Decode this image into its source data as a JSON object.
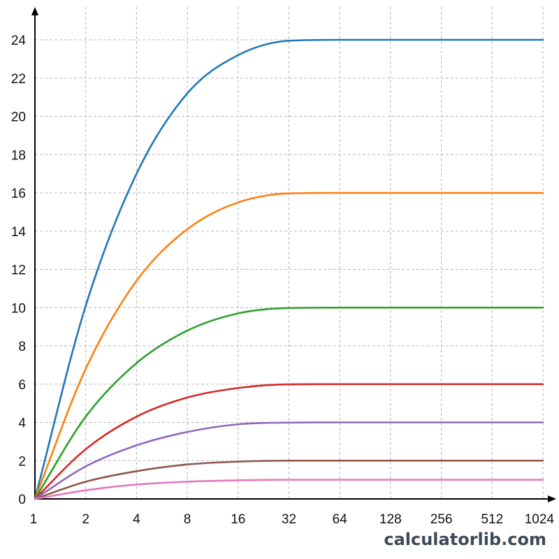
{
  "chart_data": {
    "type": "line",
    "title": "",
    "xlabel": "",
    "ylabel": "",
    "x_scale": "log2",
    "x_ticks": [
      1,
      2,
      4,
      8,
      16,
      32,
      64,
      128,
      256,
      512,
      1024
    ],
    "x_tick_labels": [
      "1",
      "2",
      "4",
      "8",
      "16",
      "32",
      "64",
      "128",
      "256",
      "512",
      "1024"
    ],
    "xlim": [
      1,
      1024
    ],
    "y_ticks": [
      0,
      2,
      4,
      6,
      8,
      10,
      12,
      14,
      16,
      18,
      20,
      22,
      24
    ],
    "y_tick_labels": [
      "0",
      "2",
      "4",
      "6",
      "8",
      "10",
      "12",
      "14",
      "16",
      "18",
      "20",
      "22",
      "24"
    ],
    "ylim": [
      0,
      24
    ],
    "grid": true,
    "legend": "none",
    "x": [
      1,
      2,
      4,
      8,
      16,
      32,
      64,
      128,
      256,
      512,
      1024
    ],
    "series": [
      {
        "color": "#1f77b4",
        "values": [
          0,
          10.1,
          17.0,
          21.2,
          23.2,
          23.95,
          24,
          24,
          24,
          24,
          24
        ]
      },
      {
        "color": "#ff7f0e",
        "values": [
          0,
          6.8,
          11.4,
          14.1,
          15.5,
          15.97,
          16,
          16,
          16,
          16,
          16
        ]
      },
      {
        "color": "#2ca02c",
        "values": [
          0,
          4.3,
          7.1,
          8.8,
          9.7,
          9.98,
          10,
          10,
          10,
          10,
          10
        ]
      },
      {
        "color": "#d62728",
        "values": [
          0,
          2.6,
          4.3,
          5.3,
          5.8,
          5.99,
          6,
          6,
          6,
          6,
          6
        ]
      },
      {
        "color": "#9467bd",
        "values": [
          0,
          1.7,
          2.8,
          3.5,
          3.9,
          3.99,
          4,
          4,
          4,
          4,
          4
        ]
      },
      {
        "color": "#8c564b",
        "values": [
          0,
          0.9,
          1.45,
          1.8,
          1.95,
          2.0,
          2,
          2,
          2,
          2,
          2
        ]
      },
      {
        "color": "#e377c2",
        "values": [
          0,
          0.45,
          0.75,
          0.9,
          0.97,
          1.0,
          1,
          1,
          1,
          1,
          1
        ]
      }
    ]
  },
  "watermark": "calculatorlib.com"
}
